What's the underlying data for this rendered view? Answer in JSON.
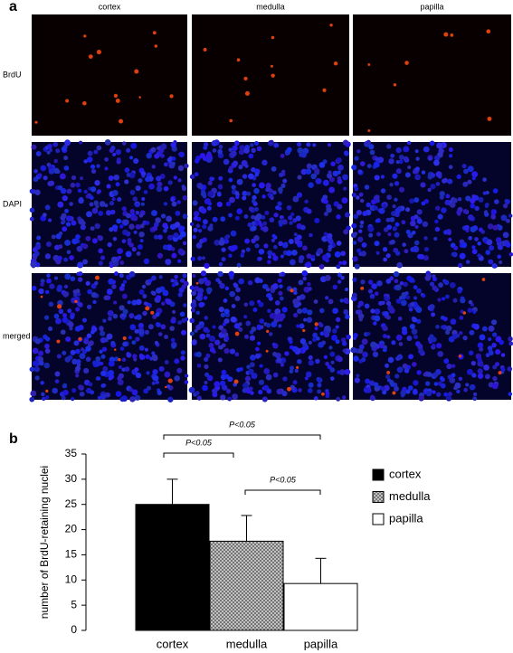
{
  "panel_a": {
    "label": "a",
    "columns": [
      "cortex",
      "medulla",
      "papilla"
    ],
    "rows": [
      "BrdU",
      "DAPI",
      "merged"
    ]
  },
  "chart_data": {
    "type": "bar",
    "label": "b",
    "y_label": "number of BrdU-retaining nuclei",
    "categories": [
      "cortex",
      "medulla",
      "papilla"
    ],
    "values": [
      25,
      17.7,
      9.3
    ],
    "errors": [
      5,
      5.1,
      5
    ],
    "colors": [
      "#000000",
      "#9a9a9a",
      "#ffffff"
    ],
    "hatched": [
      false,
      true,
      false
    ],
    "ylim": [
      0,
      35
    ],
    "yticks": [
      0,
      5,
      10,
      15,
      20,
      25,
      30,
      35
    ],
    "significance": [
      "P<0.05",
      "P<0.05",
      "P<0.05"
    ]
  }
}
